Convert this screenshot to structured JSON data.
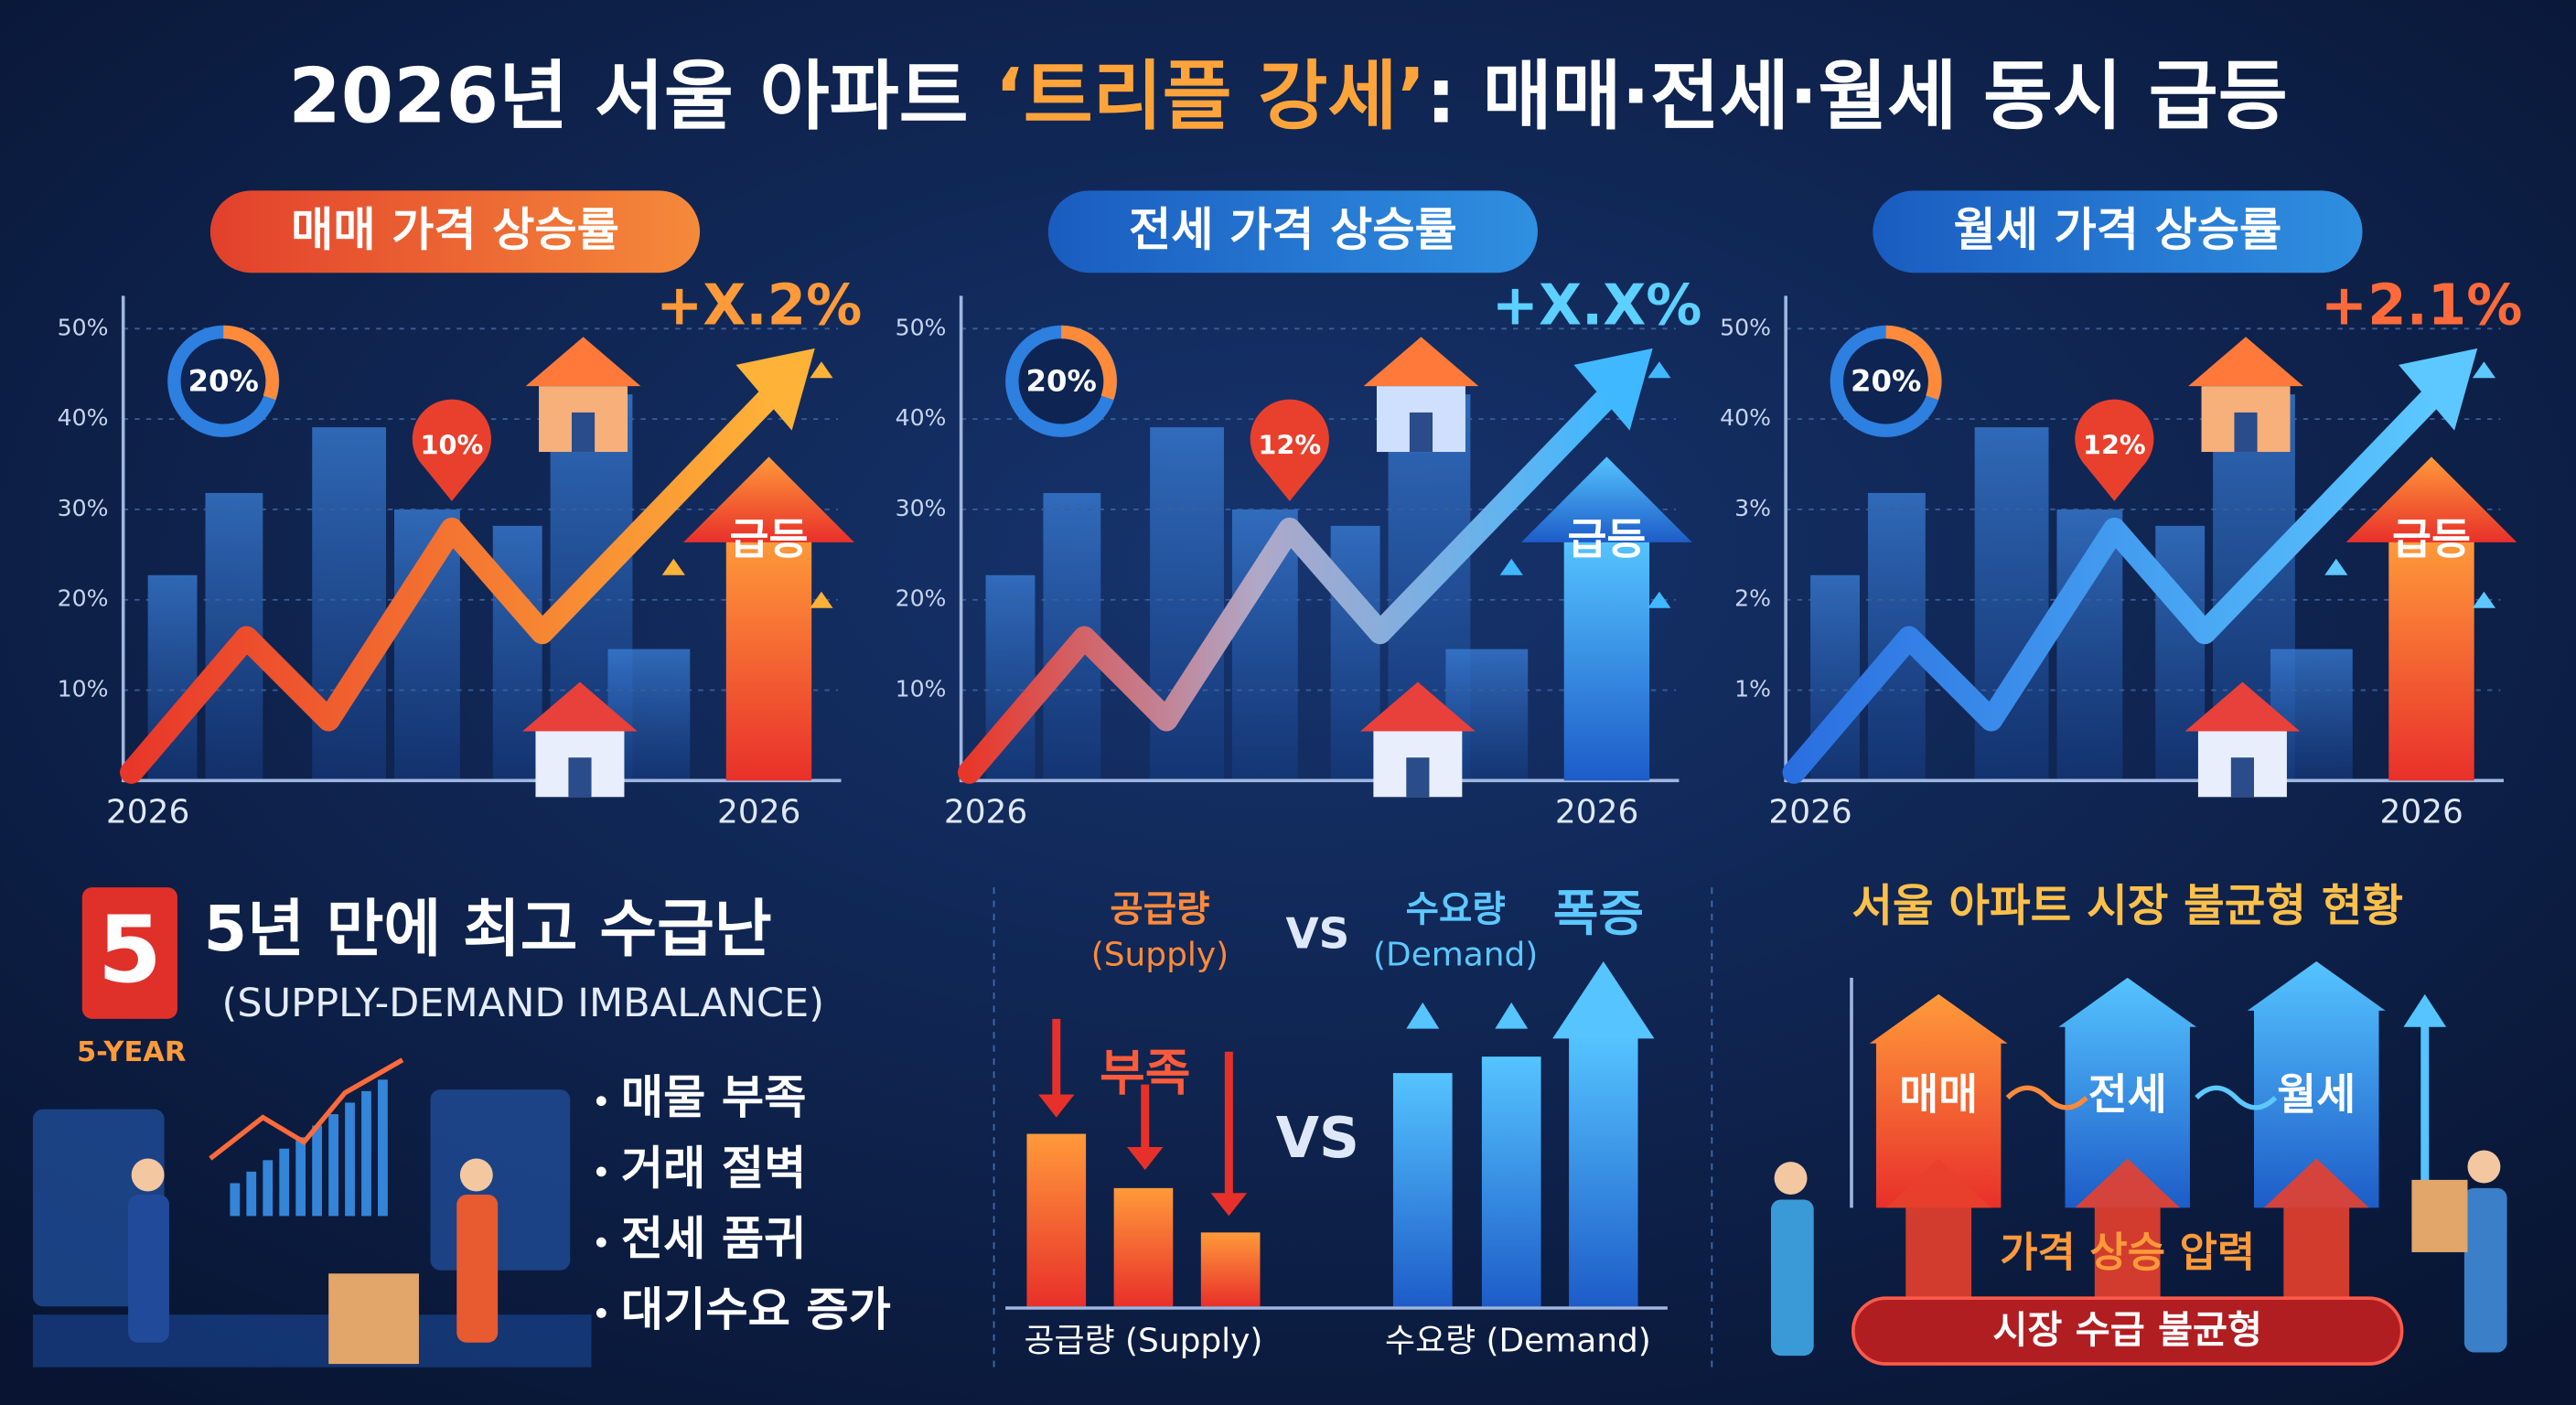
{
  "title": {
    "pre": "2026년 서울 아파트 ",
    "highlight": "‘트리플 강세’",
    "post": ": 매매·전세·월세 동시 급등"
  },
  "panels": [
    {
      "header": "매매 가격 상승률",
      "yticks": [
        "50%",
        "40%",
        "30%",
        "20%",
        "10%"
      ],
      "x_start": "2026",
      "x_end": "2026",
      "donut": "20%",
      "pin": "10%",
      "change": "+X.2%",
      "surge": "급등"
    },
    {
      "header": "전세 가격 상승률",
      "yticks": [
        "50%",
        "40%",
        "30%",
        "20%",
        "10%"
      ],
      "x_start": "2026",
      "x_end": "2026",
      "donut": "20%",
      "pin": "12%",
      "change": "+X.X%",
      "surge": "급등"
    },
    {
      "header": "월세 가격 상승률",
      "yticks": [
        "50%",
        "40%",
        "3%",
        "2%",
        "1%"
      ],
      "x_start": "2026",
      "x_end": "2026",
      "donut": "20%",
      "pin": "12%",
      "change": "+2.1%",
      "surge": "급등"
    }
  ],
  "shortage": {
    "badge": "5",
    "badge_caption": "5-YEAR",
    "heading": "5년 만에 최고 수급난",
    "subheading": "(SUPPLY-DEMAND IMBALANCE)",
    "bullets": [
      "매물 부족",
      "거래 절벽",
      "전세 품귀",
      "대기수요 증가"
    ]
  },
  "supply_demand": {
    "supply_label": "공급량",
    "supply_label_en": "(Supply)",
    "vs_top": "VS",
    "demand_label": "수요량",
    "demand_label_en": "(Demand)",
    "surge": "폭증",
    "shortage": "부족",
    "vs_middle": "VS",
    "supply_axis": "공급량 (Supply)",
    "demand_axis": "수요량 (Demand)"
  },
  "imbalance": {
    "title": "서울 아파트 시장 불균형 현황",
    "arrows": [
      "매매",
      "전세",
      "월세"
    ],
    "pressure": "가격 상승 압력",
    "footer": "시장 수급 불균형"
  }
}
